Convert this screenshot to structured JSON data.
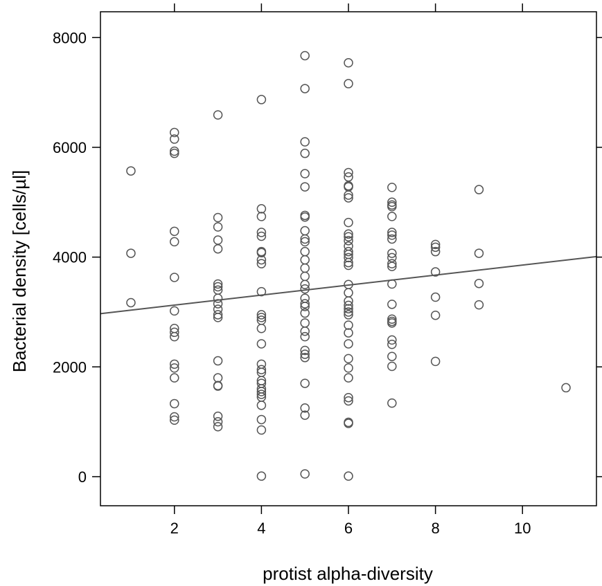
{
  "chart_data": {
    "type": "scatter",
    "title": "",
    "xlabel": "protist alpha-diversity",
    "ylabel": "Bacterial density [cells/µl]",
    "xlim": [
      0.3,
      11.7
    ],
    "ylim": [
      -530,
      8470
    ],
    "x_ticks": [
      2,
      4,
      6,
      8,
      10
    ],
    "x_tick_labels": [
      "2",
      "4",
      "6",
      "8",
      "10"
    ],
    "y_ticks": [
      0,
      2000,
      4000,
      6000,
      8000
    ],
    "y_tick_labels": [
      "0",
      "2000",
      "4000",
      "6000",
      "8000"
    ],
    "grid": false,
    "colors": {
      "points": "#555555",
      "trend_line": "#555555",
      "frame": "#000000"
    },
    "trend_line": {
      "x": [
        0.3,
        11.7
      ],
      "y": [
        2970,
        4010
      ]
    },
    "points": [
      {
        "x": 1,
        "y": 5570
      },
      {
        "x": 1,
        "y": 4070
      },
      {
        "x": 1,
        "y": 3170
      },
      {
        "x": 2,
        "y": 6270
      },
      {
        "x": 2,
        "y": 6150
      },
      {
        "x": 2,
        "y": 5930
      },
      {
        "x": 2,
        "y": 5890
      },
      {
        "x": 2,
        "y": 4470
      },
      {
        "x": 2,
        "y": 4280
      },
      {
        "x": 2,
        "y": 3630
      },
      {
        "x": 2,
        "y": 3020
      },
      {
        "x": 2,
        "y": 2700
      },
      {
        "x": 2,
        "y": 2630
      },
      {
        "x": 2,
        "y": 2550
      },
      {
        "x": 2,
        "y": 2050
      },
      {
        "x": 2,
        "y": 1980
      },
      {
        "x": 2,
        "y": 1800
      },
      {
        "x": 2,
        "y": 1330
      },
      {
        "x": 2,
        "y": 1090
      },
      {
        "x": 2,
        "y": 1030
      },
      {
        "x": 3,
        "y": 6590
      },
      {
        "x": 3,
        "y": 4720
      },
      {
        "x": 3,
        "y": 4550
      },
      {
        "x": 3,
        "y": 4310
      },
      {
        "x": 3,
        "y": 4150
      },
      {
        "x": 3,
        "y": 3510
      },
      {
        "x": 3,
        "y": 3460
      },
      {
        "x": 3,
        "y": 3400
      },
      {
        "x": 3,
        "y": 3250
      },
      {
        "x": 3,
        "y": 3150
      },
      {
        "x": 3,
        "y": 3050
      },
      {
        "x": 3,
        "y": 2950
      },
      {
        "x": 3,
        "y": 2900
      },
      {
        "x": 3,
        "y": 2110
      },
      {
        "x": 3,
        "y": 1800
      },
      {
        "x": 3,
        "y": 1660
      },
      {
        "x": 3,
        "y": 1650
      },
      {
        "x": 3,
        "y": 1100
      },
      {
        "x": 3,
        "y": 1000
      },
      {
        "x": 3,
        "y": 910
      },
      {
        "x": 4,
        "y": 6870
      },
      {
        "x": 4,
        "y": 4880
      },
      {
        "x": 4,
        "y": 4740
      },
      {
        "x": 4,
        "y": 4450
      },
      {
        "x": 4,
        "y": 4380
      },
      {
        "x": 4,
        "y": 4100
      },
      {
        "x": 4,
        "y": 4080
      },
      {
        "x": 4,
        "y": 3950
      },
      {
        "x": 4,
        "y": 3880
      },
      {
        "x": 4,
        "y": 3370
      },
      {
        "x": 4,
        "y": 2950
      },
      {
        "x": 4,
        "y": 2900
      },
      {
        "x": 4,
        "y": 2850
      },
      {
        "x": 4,
        "y": 2700
      },
      {
        "x": 4,
        "y": 2420
      },
      {
        "x": 4,
        "y": 2050
      },
      {
        "x": 4,
        "y": 1950
      },
      {
        "x": 4,
        "y": 1900
      },
      {
        "x": 4,
        "y": 1750
      },
      {
        "x": 4,
        "y": 1700
      },
      {
        "x": 4,
        "y": 1600
      },
      {
        "x": 4,
        "y": 1550
      },
      {
        "x": 4,
        "y": 1500
      },
      {
        "x": 4,
        "y": 1450
      },
      {
        "x": 4,
        "y": 1300
      },
      {
        "x": 4,
        "y": 1040
      },
      {
        "x": 4,
        "y": 850
      },
      {
        "x": 4,
        "y": 10
      },
      {
        "x": 5,
        "y": 7670
      },
      {
        "x": 5,
        "y": 7070
      },
      {
        "x": 5,
        "y": 6100
      },
      {
        "x": 5,
        "y": 5890
      },
      {
        "x": 5,
        "y": 5520
      },
      {
        "x": 5,
        "y": 5280
      },
      {
        "x": 5,
        "y": 4760
      },
      {
        "x": 5,
        "y": 4730
      },
      {
        "x": 5,
        "y": 4480
      },
      {
        "x": 5,
        "y": 4330
      },
      {
        "x": 5,
        "y": 4280
      },
      {
        "x": 5,
        "y": 4100
      },
      {
        "x": 5,
        "y": 3950
      },
      {
        "x": 5,
        "y": 3800
      },
      {
        "x": 5,
        "y": 3650
      },
      {
        "x": 5,
        "y": 3500
      },
      {
        "x": 5,
        "y": 3420
      },
      {
        "x": 5,
        "y": 3250
      },
      {
        "x": 5,
        "y": 3150
      },
      {
        "x": 5,
        "y": 3100
      },
      {
        "x": 5,
        "y": 2980
      },
      {
        "x": 5,
        "y": 2800
      },
      {
        "x": 5,
        "y": 2650
      },
      {
        "x": 5,
        "y": 2550
      },
      {
        "x": 5,
        "y": 2300
      },
      {
        "x": 5,
        "y": 2230
      },
      {
        "x": 5,
        "y": 2170
      },
      {
        "x": 5,
        "y": 1700
      },
      {
        "x": 5,
        "y": 1250
      },
      {
        "x": 5,
        "y": 1120
      },
      {
        "x": 5,
        "y": 50
      },
      {
        "x": 6,
        "y": 7540
      },
      {
        "x": 6,
        "y": 7160
      },
      {
        "x": 6,
        "y": 5540
      },
      {
        "x": 6,
        "y": 5460
      },
      {
        "x": 6,
        "y": 5300
      },
      {
        "x": 6,
        "y": 5280
      },
      {
        "x": 6,
        "y": 5130
      },
      {
        "x": 6,
        "y": 5080
      },
      {
        "x": 6,
        "y": 4630
      },
      {
        "x": 6,
        "y": 4420
      },
      {
        "x": 6,
        "y": 4370
      },
      {
        "x": 6,
        "y": 4300
      },
      {
        "x": 6,
        "y": 4200
      },
      {
        "x": 6,
        "y": 4100
      },
      {
        "x": 6,
        "y": 4050
      },
      {
        "x": 6,
        "y": 3990
      },
      {
        "x": 6,
        "y": 3900
      },
      {
        "x": 6,
        "y": 3850
      },
      {
        "x": 6,
        "y": 3500
      },
      {
        "x": 6,
        "y": 3350
      },
      {
        "x": 6,
        "y": 3200
      },
      {
        "x": 6,
        "y": 3120
      },
      {
        "x": 6,
        "y": 3060
      },
      {
        "x": 6,
        "y": 3000
      },
      {
        "x": 6,
        "y": 2950
      },
      {
        "x": 6,
        "y": 2760
      },
      {
        "x": 6,
        "y": 2620
      },
      {
        "x": 6,
        "y": 2420
      },
      {
        "x": 6,
        "y": 2150
      },
      {
        "x": 6,
        "y": 1980
      },
      {
        "x": 6,
        "y": 1800
      },
      {
        "x": 6,
        "y": 1440
      },
      {
        "x": 6,
        "y": 1380
      },
      {
        "x": 6,
        "y": 990
      },
      {
        "x": 6,
        "y": 970
      },
      {
        "x": 6,
        "y": 10
      },
      {
        "x": 7,
        "y": 5270
      },
      {
        "x": 7,
        "y": 5000
      },
      {
        "x": 7,
        "y": 4950
      },
      {
        "x": 7,
        "y": 4920
      },
      {
        "x": 7,
        "y": 4740
      },
      {
        "x": 7,
        "y": 4450
      },
      {
        "x": 7,
        "y": 4400
      },
      {
        "x": 7,
        "y": 4330
      },
      {
        "x": 7,
        "y": 4070
      },
      {
        "x": 7,
        "y": 3990
      },
      {
        "x": 7,
        "y": 3880
      },
      {
        "x": 7,
        "y": 3830
      },
      {
        "x": 7,
        "y": 3510
      },
      {
        "x": 7,
        "y": 3140
      },
      {
        "x": 7,
        "y": 2870
      },
      {
        "x": 7,
        "y": 2830
      },
      {
        "x": 7,
        "y": 2800
      },
      {
        "x": 7,
        "y": 2490
      },
      {
        "x": 7,
        "y": 2410
      },
      {
        "x": 7,
        "y": 2190
      },
      {
        "x": 7,
        "y": 2010
      },
      {
        "x": 7,
        "y": 1340
      },
      {
        "x": 8,
        "y": 4230
      },
      {
        "x": 8,
        "y": 4180
      },
      {
        "x": 8,
        "y": 4100
      },
      {
        "x": 8,
        "y": 3730
      },
      {
        "x": 8,
        "y": 3270
      },
      {
        "x": 8,
        "y": 2940
      },
      {
        "x": 8,
        "y": 2100
      },
      {
        "x": 9,
        "y": 5230
      },
      {
        "x": 9,
        "y": 4070
      },
      {
        "x": 9,
        "y": 3520
      },
      {
        "x": 9,
        "y": 3130
      },
      {
        "x": 11,
        "y": 1620
      }
    ]
  }
}
